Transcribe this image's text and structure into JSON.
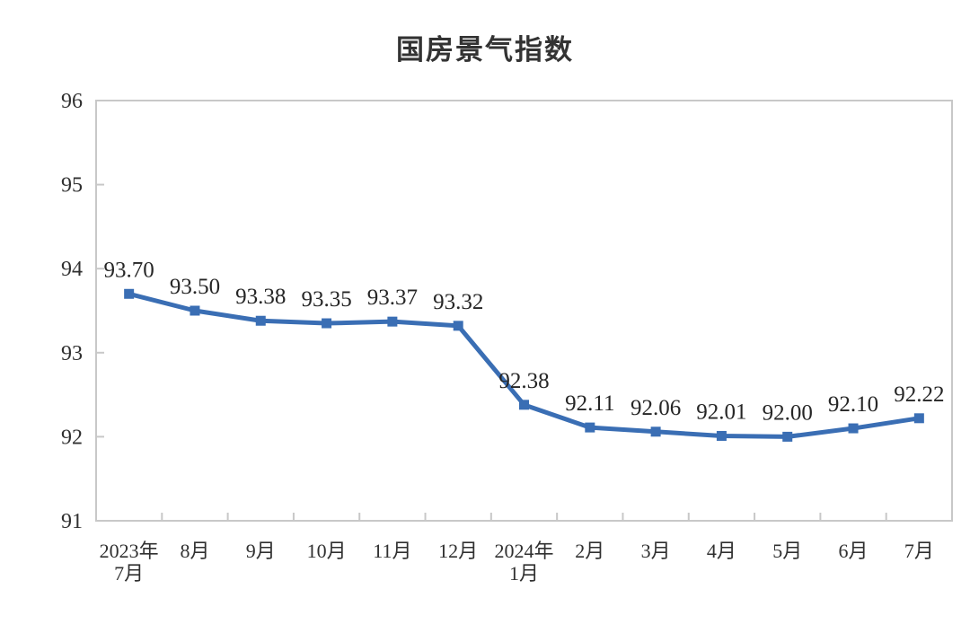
{
  "chart_data": {
    "type": "line",
    "title": "国房景气指数",
    "categories": [
      "2023年\n7月",
      "8月",
      "9月",
      "10月",
      "11月",
      "12月",
      "2024年\n1月",
      "2月",
      "3月",
      "4月",
      "5月",
      "6月",
      "7月"
    ],
    "values": [
      93.7,
      93.5,
      93.38,
      93.35,
      93.37,
      93.32,
      92.38,
      92.11,
      92.06,
      92.01,
      92.0,
      92.1,
      92.22
    ],
    "value_labels": [
      "93.70",
      "93.50",
      "93.38",
      "93.35",
      "93.37",
      "93.32",
      "92.38",
      "92.11",
      "92.06",
      "92.01",
      "92.00",
      "92.10",
      "92.22"
    ],
    "xlabel": "",
    "ylabel": "",
    "ylim": [
      91,
      96
    ],
    "yticks": [
      96,
      95,
      94,
      93,
      92,
      91
    ],
    "grid": false,
    "legend_position": "none",
    "marker": "square",
    "line_color": "#3A6EB4",
    "frame_color": "#C8C8C8",
    "tick_label_color": "#303030",
    "value_label_color": "#262626",
    "title_color": "#333333"
  }
}
